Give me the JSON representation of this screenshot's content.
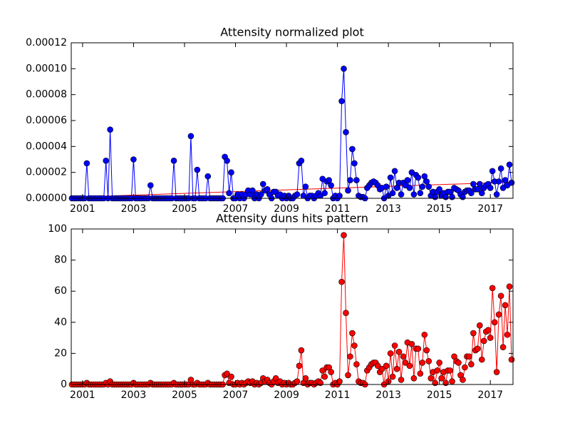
{
  "chart_data": [
    {
      "type": "line",
      "title": "Attensity normalized plot",
      "x": [
        2000.583,
        2000.667,
        2000.75,
        2000.833,
        2000.917,
        2001,
        2001.083,
        2001.167,
        2001.25,
        2001.333,
        2001.417,
        2001.5,
        2001.583,
        2001.667,
        2001.75,
        2001.833,
        2001.917,
        2002,
        2002.083,
        2002.167,
        2002.25,
        2002.333,
        2002.417,
        2002.5,
        2002.583,
        2002.667,
        2002.75,
        2002.833,
        2002.917,
        2003,
        2003.083,
        2003.167,
        2003.25,
        2003.333,
        2003.417,
        2003.5,
        2003.583,
        2003.667,
        2003.75,
        2003.833,
        2003.917,
        2004,
        2004.083,
        2004.167,
        2004.25,
        2004.333,
        2004.417,
        2004.5,
        2004.583,
        2004.667,
        2004.75,
        2004.833,
        2004.917,
        2005,
        2005.083,
        2005.167,
        2005.25,
        2005.333,
        2005.417,
        2005.5,
        2005.583,
        2005.667,
        2005.75,
        2005.833,
        2005.917,
        2006,
        2006.083,
        2006.167,
        2006.25,
        2006.333,
        2006.417,
        2006.5,
        2006.583,
        2006.667,
        2006.75,
        2006.833,
        2006.917,
        2007,
        2007.083,
        2007.167,
        2007.25,
        2007.333,
        2007.417,
        2007.5,
        2007.583,
        2007.667,
        2007.75,
        2007.833,
        2007.917,
        2008,
        2008.083,
        2008.167,
        2008.25,
        2008.333,
        2008.417,
        2008.5,
        2008.583,
        2008.667,
        2008.75,
        2008.833,
        2008.917,
        2009,
        2009.083,
        2009.167,
        2009.25,
        2009.333,
        2009.417,
        2009.5,
        2009.583,
        2009.667,
        2009.75,
        2009.833,
        2009.917,
        2010,
        2010.083,
        2010.167,
        2010.25,
        2010.333,
        2010.417,
        2010.5,
        2010.583,
        2010.667,
        2010.75,
        2010.833,
        2010.917,
        2011,
        2011.083,
        2011.167,
        2011.25,
        2011.333,
        2011.417,
        2011.5,
        2011.583,
        2011.667,
        2011.75,
        2011.833,
        2011.917,
        2012,
        2012.083,
        2012.167,
        2012.25,
        2012.333,
        2012.417,
        2012.5,
        2012.583,
        2012.667,
        2012.75,
        2012.833,
        2012.917,
        2013,
        2013.083,
        2013.167,
        2013.25,
        2013.333,
        2013.417,
        2013.5,
        2013.583,
        2013.667,
        2013.75,
        2013.833,
        2013.917,
        2014,
        2014.083,
        2014.167,
        2014.25,
        2014.333,
        2014.417,
        2014.5,
        2014.583,
        2014.667,
        2014.75,
        2014.833,
        2014.917,
        2015,
        2015.083,
        2015.167,
        2015.25,
        2015.333,
        2015.417,
        2015.5,
        2015.583,
        2015.667,
        2015.75,
        2015.833,
        2015.917,
        2016,
        2016.083,
        2016.167,
        2016.25,
        2016.333,
        2016.417,
        2016.5,
        2016.583,
        2016.667,
        2016.75,
        2016.833,
        2016.917,
        2017,
        2017.083,
        2017.167,
        2017.25,
        2017.333,
        2017.417,
        2017.5,
        2017.583,
        2017.667,
        2017.75,
        2017.833
      ],
      "values": [
        0,
        0,
        0,
        0,
        0,
        0,
        0,
        2.7e-05,
        0,
        0,
        0,
        0,
        0,
        0,
        0,
        0,
        2.9e-05,
        0,
        5.3e-05,
        0,
        0,
        0,
        0,
        0,
        0,
        0,
        0,
        0,
        0,
        3e-05,
        0,
        0,
        0,
        0,
        0,
        0,
        0,
        1e-05,
        0,
        0,
        0,
        0,
        0,
        0,
        0,
        0,
        0,
        0,
        2.9e-05,
        0,
        0,
        0,
        0,
        0,
        0,
        0,
        4.8e-05,
        0,
        0,
        2.2e-05,
        0,
        0,
        0,
        0,
        1.7e-05,
        0,
        0,
        0,
        0,
        0,
        0,
        0,
        3.2e-05,
        2.9e-05,
        4e-06,
        2e-05,
        0,
        0,
        3e-06,
        0,
        3e-06,
        0,
        3e-06,
        6e-06,
        3e-06,
        6e-06,
        0,
        3e-06,
        0,
        3e-06,
        1.1e-05,
        6e-06,
        7e-06,
        3e-06,
        0,
        5e-06,
        5e-06,
        2e-06,
        3e-06,
        0,
        2e-06,
        0,
        2e-06,
        0,
        0,
        2e-06,
        3e-06,
        2.7e-05,
        2.9e-05,
        2e-06,
        9e-06,
        0,
        2e-06,
        2e-06,
        0,
        2e-06,
        4e-06,
        2e-06,
        1.5e-05,
        4e-06,
        1.3e-05,
        1.4e-05,
        1e-05,
        0,
        2e-06,
        0,
        2e-06,
        7.5e-05,
        0.0001,
        5.1e-05,
        6e-06,
        1.4e-05,
        3.8e-05,
        2.7e-05,
        1.4e-05,
        2e-06,
        1e-06,
        1e-06,
        0,
        8e-06,
        1e-05,
        1.2e-05,
        1.3e-05,
        1.2e-05,
        1e-05,
        7e-06,
        8e-06,
        0,
        9e-06,
        2e-06,
        1.6e-05,
        4e-06,
        2.1e-05,
        8e-06,
        1.2e-05,
        3e-06,
        1.2e-05,
        1e-05,
        1.4e-05,
        8e-06,
        2e-05,
        3e-06,
        1.8e-05,
        1.6e-05,
        4e-06,
        9e-06,
        1.7e-05,
        1.3e-05,
        9e-06,
        2e-06,
        5e-06,
        1e-06,
        5e-06,
        7e-06,
        2e-06,
        4e-06,
        1e-06,
        5e-06,
        5e-06,
        1e-06,
        8e-06,
        7e-06,
        6e-06,
        3e-06,
        1e-06,
        5e-06,
        6e-06,
        6e-06,
        4e-06,
        1.1e-05,
        7e-06,
        7e-06,
        1.1e-05,
        4e-06,
        8e-06,
        1e-05,
        1.1e-05,
        8e-06,
        2.1e-05,
        1.3e-05,
        3e-06,
        1.3e-05,
        2.3e-05,
        8e-06,
        1.4e-05,
        1e-05,
        2.6e-05,
        1.2e-05
      ],
      "color": "#0000ff",
      "trend": {
        "x": [
          2000.556,
          2017.889
        ],
        "values": [
          8e-07,
          1.25e-05
        ],
        "color": "#ff0000"
      },
      "xlim": [
        2000.556,
        2017.889
      ],
      "xticks": [
        2001,
        2003,
        2005,
        2007,
        2009,
        2011,
        2013,
        2015,
        2017
      ],
      "ylim": [
        0,
        0.00012
      ],
      "yticks": [
        {
          "value": 0,
          "label": "0.00000"
        },
        {
          "value": 2e-05,
          "label": "0.00002"
        },
        {
          "value": 4e-05,
          "label": "0.00004"
        },
        {
          "value": 6e-05,
          "label": "0.00006"
        },
        {
          "value": 8e-05,
          "label": "0.00008"
        },
        {
          "value": 0.0001,
          "label": "0.00010"
        },
        {
          "value": 0.00012,
          "label": "0.00012"
        }
      ]
    },
    {
      "type": "line",
      "title": "Attensity duns hits pattern",
      "x": [
        2000.583,
        2000.667,
        2000.75,
        2000.833,
        2000.917,
        2001,
        2001.083,
        2001.167,
        2001.25,
        2001.333,
        2001.417,
        2001.5,
        2001.583,
        2001.667,
        2001.75,
        2001.833,
        2001.917,
        2002,
        2002.083,
        2002.167,
        2002.25,
        2002.333,
        2002.417,
        2002.5,
        2002.583,
        2002.667,
        2002.75,
        2002.833,
        2002.917,
        2003,
        2003.083,
        2003.167,
        2003.25,
        2003.333,
        2003.417,
        2003.5,
        2003.583,
        2003.667,
        2003.75,
        2003.833,
        2003.917,
        2004,
        2004.083,
        2004.167,
        2004.25,
        2004.333,
        2004.417,
        2004.5,
        2004.583,
        2004.667,
        2004.75,
        2004.833,
        2004.917,
        2005,
        2005.083,
        2005.167,
        2005.25,
        2005.333,
        2005.417,
        2005.5,
        2005.583,
        2005.667,
        2005.75,
        2005.833,
        2005.917,
        2006,
        2006.083,
        2006.167,
        2006.25,
        2006.333,
        2006.417,
        2006.5,
        2006.583,
        2006.667,
        2006.75,
        2006.833,
        2006.917,
        2007,
        2007.083,
        2007.167,
        2007.25,
        2007.333,
        2007.417,
        2007.5,
        2007.583,
        2007.667,
        2007.75,
        2007.833,
        2007.917,
        2008,
        2008.083,
        2008.167,
        2008.25,
        2008.333,
        2008.417,
        2008.5,
        2008.583,
        2008.667,
        2008.75,
        2008.833,
        2008.917,
        2009,
        2009.083,
        2009.167,
        2009.25,
        2009.333,
        2009.417,
        2009.5,
        2009.583,
        2009.667,
        2009.75,
        2009.833,
        2009.917,
        2010,
        2010.083,
        2010.167,
        2010.25,
        2010.333,
        2010.417,
        2010.5,
        2010.583,
        2010.667,
        2010.75,
        2010.833,
        2010.917,
        2011,
        2011.083,
        2011.167,
        2011.25,
        2011.333,
        2011.417,
        2011.5,
        2011.583,
        2011.667,
        2011.75,
        2011.833,
        2011.917,
        2012,
        2012.083,
        2012.167,
        2012.25,
        2012.333,
        2012.417,
        2012.5,
        2012.583,
        2012.667,
        2012.75,
        2012.833,
        2012.917,
        2013,
        2013.083,
        2013.167,
        2013.25,
        2013.333,
        2013.417,
        2013.5,
        2013.583,
        2013.667,
        2013.75,
        2013.833,
        2013.917,
        2014,
        2014.083,
        2014.167,
        2014.25,
        2014.333,
        2014.417,
        2014.5,
        2014.583,
        2014.667,
        2014.75,
        2014.833,
        2014.917,
        2015,
        2015.083,
        2015.167,
        2015.25,
        2015.333,
        2015.417,
        2015.5,
        2015.583,
        2015.667,
        2015.75,
        2015.833,
        2015.917,
        2016,
        2016.083,
        2016.167,
        2016.25,
        2016.333,
        2016.417,
        2016.5,
        2016.583,
        2016.667,
        2016.75,
        2016.833,
        2016.917,
        2017,
        2017.083,
        2017.167,
        2017.25,
        2017.333,
        2017.417,
        2017.5,
        2017.583,
        2017.667,
        2017.75,
        2017.833
      ],
      "values": [
        0,
        0,
        0,
        0,
        0,
        0,
        0,
        1,
        0,
        0,
        0,
        0,
        0,
        0,
        0,
        0,
        1,
        0,
        2,
        0,
        0,
        0,
        0,
        0,
        0,
        0,
        0,
        0,
        0,
        1,
        0,
        0,
        0,
        0,
        0,
        0,
        0,
        1,
        0,
        0,
        0,
        0,
        0,
        0,
        0,
        0,
        0,
        0,
        1,
        0,
        0,
        0,
        0,
        0,
        0,
        0,
        3,
        0,
        0,
        1,
        0,
        0,
        0,
        0,
        1,
        0,
        0,
        0,
        0,
        0,
        0,
        0,
        6,
        7,
        1,
        5,
        0,
        0,
        1,
        0,
        1,
        0,
        1,
        2,
        1,
        2,
        0,
        1,
        0,
        1,
        4,
        2,
        3,
        1,
        0,
        2,
        4,
        1,
        2,
        0,
        1,
        0,
        1,
        0,
        0,
        1,
        2,
        12,
        22,
        1,
        4,
        0,
        1,
        1,
        0,
        1,
        2,
        1,
        9,
        5,
        11,
        11,
        8,
        0,
        1,
        0,
        2,
        66,
        96,
        46,
        6,
        18,
        33,
        25,
        13,
        2,
        1,
        1,
        0,
        9,
        11,
        13,
        14,
        14,
        12,
        8,
        10,
        0,
        12,
        2,
        20,
        5,
        25,
        10,
        21,
        3,
        18,
        14,
        27,
        12,
        26,
        4,
        23,
        23,
        7,
        14,
        32,
        22,
        15,
        4,
        8,
        1,
        9,
        14,
        4,
        8,
        1,
        9,
        9,
        2,
        18,
        15,
        14,
        6,
        3,
        11,
        18,
        18,
        13,
        33,
        22,
        23,
        38,
        16,
        28,
        34,
        35,
        30,
        62,
        40,
        8,
        45,
        57,
        24,
        51,
        32,
        63,
        16
      ],
      "color": "#ff0000",
      "xlim": [
        2000.556,
        2017.889
      ],
      "xticks": [
        2001,
        2003,
        2005,
        2007,
        2009,
        2011,
        2013,
        2015,
        2017
      ],
      "ylim": [
        0,
        100
      ],
      "yticks": [
        0,
        20,
        40,
        60,
        80,
        100
      ]
    }
  ]
}
